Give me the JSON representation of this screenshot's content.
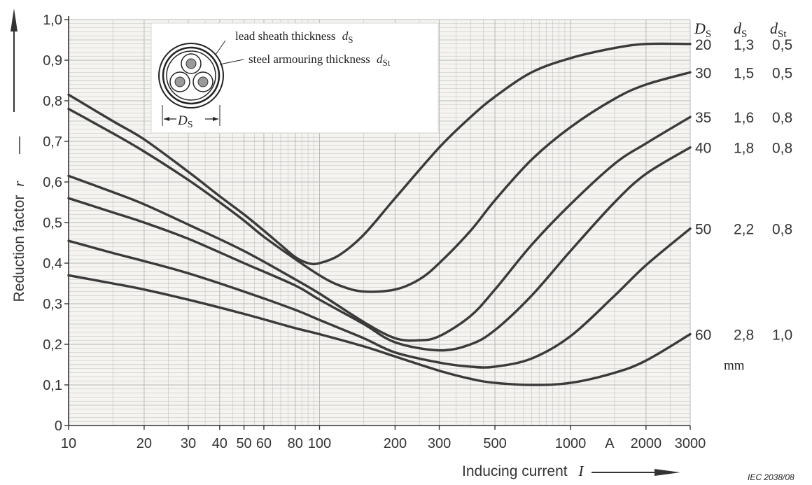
{
  "chart_data": {
    "type": "line",
    "xlabel": "Inducing current",
    "xlabel_symbol": "I",
    "ylabel": "Reduction factor",
    "ylabel_symbol": "r",
    "x_scale": "log",
    "xlim": [
      10,
      3000
    ],
    "ylim": [
      0,
      1.0
    ],
    "grid": true,
    "x_ticks": [
      10,
      20,
      30,
      40,
      50,
      60,
      80,
      100,
      200,
      300,
      500,
      1000,
      2000,
      3000
    ],
    "x_tick_labels": [
      "10",
      "20",
      "30",
      "40",
      "50",
      "60",
      "80",
      "100",
      "200",
      "300",
      "500",
      "1000",
      "2000",
      "3000"
    ],
    "x_unit_label": "A",
    "y_ticks": [
      0,
      0.1,
      0.2,
      0.3,
      0.4,
      0.5,
      0.6,
      0.7,
      0.8,
      0.9,
      1.0
    ],
    "y_tick_labels": [
      "0",
      "0,1",
      "0,2",
      "0,3",
      "0,4",
      "0,5",
      "0,6",
      "0,7",
      "0,8",
      "0,9",
      "1,0"
    ],
    "table_headers": [
      "D",
      "d",
      "d"
    ],
    "table_header_subscripts": [
      "S",
      "S",
      "St"
    ],
    "table_unit": "mm",
    "series": [
      {
        "ds": "20",
        "dsheath": "1,3",
        "dst": "0,5",
        "x": [
          10,
          15,
          20,
          30,
          40,
          50,
          60,
          70,
          80,
          90,
          100,
          120,
          150,
          200,
          300,
          400,
          500,
          700,
          1000,
          1500,
          2000,
          3000
        ],
        "y": [
          0.815,
          0.75,
          0.705,
          0.625,
          0.565,
          0.52,
          0.48,
          0.445,
          0.415,
          0.4,
          0.4,
          0.42,
          0.47,
          0.56,
          0.685,
          0.76,
          0.81,
          0.87,
          0.905,
          0.93,
          0.94,
          0.94
        ]
      },
      {
        "ds": "30",
        "dsheath": "1,5",
        "dst": "0,5",
        "x": [
          10,
          15,
          20,
          30,
          40,
          50,
          60,
          80,
          100,
          120,
          150,
          200,
          250,
          300,
          400,
          500,
          700,
          1000,
          1500,
          2000,
          3000
        ],
        "y": [
          0.78,
          0.72,
          0.675,
          0.605,
          0.55,
          0.505,
          0.465,
          0.41,
          0.37,
          0.345,
          0.33,
          0.335,
          0.36,
          0.4,
          0.48,
          0.555,
          0.655,
          0.735,
          0.805,
          0.84,
          0.87
        ]
      },
      {
        "ds": "35",
        "dsheath": "1,6",
        "dst": "0,8",
        "x": [
          10,
          15,
          20,
          30,
          50,
          80,
          100,
          150,
          200,
          250,
          300,
          400,
          500,
          700,
          1000,
          1500,
          2000,
          3000
        ],
        "y": [
          0.615,
          0.575,
          0.545,
          0.495,
          0.43,
          0.36,
          0.325,
          0.255,
          0.215,
          0.21,
          0.22,
          0.27,
          0.335,
          0.445,
          0.545,
          0.645,
          0.695,
          0.76
        ]
      },
      {
        "ds": "40",
        "dsheath": "1,8",
        "dst": "0,8",
        "x": [
          10,
          15,
          20,
          30,
          50,
          80,
          100,
          150,
          200,
          300,
          400,
          500,
          700,
          1000,
          1500,
          2000,
          3000
        ],
        "y": [
          0.56,
          0.525,
          0.5,
          0.46,
          0.4,
          0.345,
          0.31,
          0.25,
          0.205,
          0.185,
          0.2,
          0.235,
          0.32,
          0.43,
          0.55,
          0.62,
          0.685
        ]
      },
      {
        "ds": "50",
        "dsheath": "2,2",
        "dst": "0,8",
        "x": [
          10,
          15,
          20,
          30,
          50,
          80,
          100,
          150,
          200,
          300,
          400,
          500,
          700,
          1000,
          1500,
          2000,
          3000
        ],
        "y": [
          0.455,
          0.425,
          0.405,
          0.375,
          0.33,
          0.285,
          0.26,
          0.215,
          0.18,
          0.155,
          0.145,
          0.145,
          0.165,
          0.22,
          0.32,
          0.395,
          0.485
        ]
      },
      {
        "ds": "60",
        "dsheath": "2,8",
        "dst": "1,0",
        "x": [
          10,
          15,
          20,
          30,
          50,
          80,
          100,
          150,
          200,
          300,
          400,
          500,
          700,
          1000,
          1500,
          2000,
          3000
        ],
        "y": [
          0.37,
          0.35,
          0.335,
          0.31,
          0.275,
          0.24,
          0.225,
          0.195,
          0.17,
          0.135,
          0.115,
          0.105,
          0.1,
          0.105,
          0.13,
          0.16,
          0.225
        ]
      }
    ],
    "inset": {
      "label_sheath": "lead sheath thickness",
      "label_sheath_symbol": "d",
      "label_sheath_sub": "S",
      "label_armour": "steel armouring thickness",
      "label_armour_symbol": "d",
      "label_armour_sub": "St",
      "diameter_symbol": "D",
      "diameter_sub": "S"
    },
    "line_color": "#3a3a3a",
    "grid_color": "#b8b8b8",
    "credit": "IEC  2038/08"
  }
}
